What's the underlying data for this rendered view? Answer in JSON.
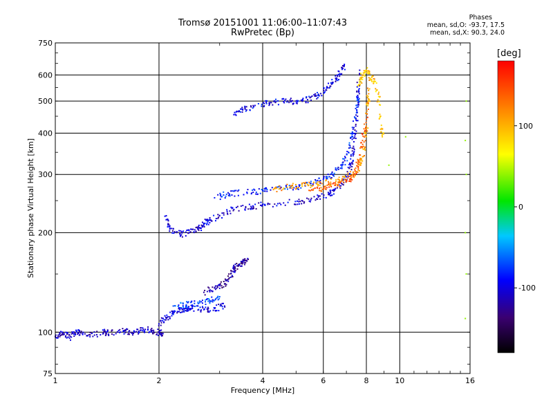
{
  "chart_data": {
    "type": "scatter",
    "title": "Tromsø 20151001 11:06:00–11:07:43",
    "subtitle": "RwPretec (Bp)",
    "xlabel": "Frequency [MHz]",
    "ylabel": "Stationary phase Virtual Height [km]",
    "x_scale": "log",
    "y_scale": "log",
    "xlim": [
      1,
      16
    ],
    "ylim": [
      75,
      750
    ],
    "x_ticks": [
      1,
      2,
      4,
      6,
      8,
      10,
      16
    ],
    "x_tick_labels": [
      "1",
      "2",
      "4",
      "6",
      "8",
      "10",
      "16"
    ],
    "y_ticks": [
      75,
      100,
      200,
      300,
      400,
      500,
      600,
      750
    ],
    "y_tick_labels": [
      "75",
      "100",
      "200",
      "300",
      "400",
      "500",
      "600",
      "750"
    ],
    "grid": true,
    "phase_legend": {
      "title": "Phases",
      "line_o": "mean, sd,O: -93.7, 17.5",
      "line_x": "mean, sd,X:  90.3, 24.0"
    },
    "colorbar": {
      "label": "[deg]",
      "range": [
        -180,
        180
      ],
      "ticks": [
        100,
        0,
        -100
      ],
      "tick_labels": [
        "100",
        "0",
        "-100"
      ]
    },
    "traces": [
      {
        "points": [
          [
            1.0,
            97
          ],
          [
            1.05,
            100
          ],
          [
            1.1,
            96
          ],
          [
            1.15,
            101
          ],
          [
            1.2,
            99
          ],
          [
            1.3,
            98
          ],
          [
            1.4,
            100
          ],
          [
            1.5,
            99
          ],
          [
            1.6,
            101
          ],
          [
            1.7,
            100
          ],
          [
            1.8,
            102
          ],
          [
            1.9,
            101
          ],
          [
            2.0,
            100
          ],
          [
            2.05,
            99
          ]
        ],
        "phase": -110
      },
      {
        "points": [
          [
            2.0,
            106
          ],
          [
            2.1,
            110
          ],
          [
            2.2,
            114
          ],
          [
            2.3,
            117
          ],
          [
            2.4,
            118
          ],
          [
            2.5,
            118
          ],
          [
            2.7,
            117
          ],
          [
            2.9,
            118
          ],
          [
            3.1,
            120
          ]
        ],
        "phase": -100
      },
      {
        "points": [
          [
            2.2,
            120
          ],
          [
            2.4,
            121
          ],
          [
            2.6,
            122
          ],
          [
            2.8,
            125
          ],
          [
            3.0,
            128
          ]
        ],
        "phase": -70
      },
      {
        "points": [
          [
            2.7,
            132
          ],
          [
            2.9,
            136
          ],
          [
            3.1,
            140
          ],
          [
            3.2,
            146
          ],
          [
            3.3,
            155
          ],
          [
            3.4,
            160
          ],
          [
            3.5,
            162
          ],
          [
            3.6,
            164
          ]
        ],
        "phase": -120
      },
      {
        "points": [
          [
            2.1,
            225
          ],
          [
            2.15,
            205
          ],
          [
            2.3,
            198
          ],
          [
            2.45,
            200
          ],
          [
            2.6,
            205
          ],
          [
            2.7,
            212
          ],
          [
            2.8,
            218
          ],
          [
            3.0,
            225
          ],
          [
            3.3,
            235
          ],
          [
            3.7,
            240
          ],
          [
            4.0,
            243
          ],
          [
            4.6,
            246
          ],
          [
            5.2,
            250
          ],
          [
            5.8,
            256
          ],
          [
            6.3,
            264
          ],
          [
            6.7,
            276
          ],
          [
            7.0,
            295
          ],
          [
            7.2,
            320
          ],
          [
            7.35,
            360
          ],
          [
            7.45,
            420
          ],
          [
            7.55,
            520
          ],
          [
            7.65,
            620
          ]
        ],
        "phase": -105
      },
      {
        "points": [
          [
            2.9,
            255
          ],
          [
            3.2,
            262
          ],
          [
            3.6,
            265
          ],
          [
            4.0,
            268
          ],
          [
            4.5,
            272
          ],
          [
            5.0,
            276
          ],
          [
            5.5,
            282
          ],
          [
            6.0,
            290
          ],
          [
            6.4,
            300
          ],
          [
            6.8,
            320
          ],
          [
            7.1,
            350
          ],
          [
            7.3,
            400
          ],
          [
            7.5,
            470
          ],
          [
            7.6,
            540
          ]
        ],
        "phase": -85
      },
      {
        "points": [
          [
            4.3,
            270
          ],
          [
            4.8,
            275
          ],
          [
            5.3,
            278
          ],
          [
            5.8,
            280
          ],
          [
            6.3,
            284
          ],
          [
            6.8,
            290
          ],
          [
            7.3,
            300
          ],
          [
            7.7,
            320
          ],
          [
            7.9,
            360
          ],
          [
            8.0,
            420
          ],
          [
            8.1,
            500
          ],
          [
            8.2,
            580
          ]
        ],
        "phase": 110
      },
      {
        "points": [
          [
            5.5,
            268
          ],
          [
            6.0,
            272
          ],
          [
            6.5,
            278
          ],
          [
            7.0,
            285
          ],
          [
            7.4,
            300
          ],
          [
            7.6,
            330
          ],
          [
            7.8,
            380
          ],
          [
            8.0,
            440
          ]
        ],
        "phase": 140
      },
      {
        "points": [
          [
            3.3,
            455
          ],
          [
            3.5,
            470
          ],
          [
            3.8,
            485
          ],
          [
            4.2,
            495
          ],
          [
            4.6,
            498
          ],
          [
            5.0,
            500
          ],
          [
            5.4,
            505
          ],
          [
            5.8,
            520
          ],
          [
            6.1,
            540
          ],
          [
            6.4,
            570
          ],
          [
            6.7,
            605
          ],
          [
            6.9,
            640
          ]
        ],
        "phase": -100
      },
      {
        "points": [
          [
            7.6,
            560
          ],
          [
            7.8,
            600
          ],
          [
            8.0,
            620
          ],
          [
            8.3,
            590
          ],
          [
            8.6,
            540
          ],
          [
            8.8,
            450
          ],
          [
            8.9,
            390
          ]
        ],
        "phase": 90
      },
      {
        "points": [
          [
            9.3,
            320
          ],
          [
            10.4,
            390
          ],
          [
            15.5,
            380
          ],
          [
            15.6,
            300
          ],
          [
            15.5,
            200
          ],
          [
            15.6,
            150
          ],
          [
            15.5,
            110
          ],
          [
            15.6,
            500
          ]
        ],
        "phase": 40
      }
    ]
  }
}
